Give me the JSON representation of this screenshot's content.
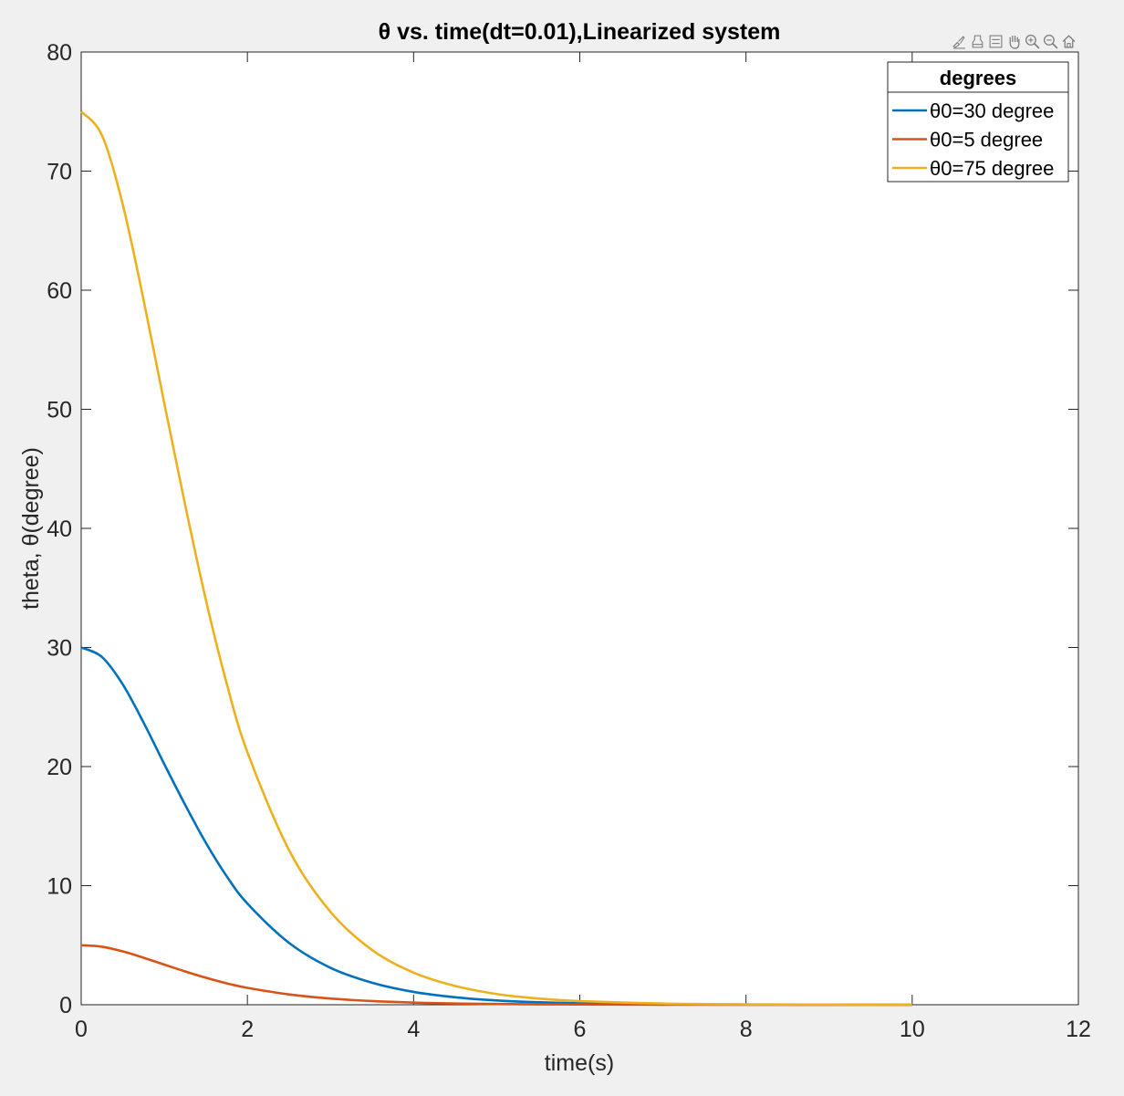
{
  "toolbar": {
    "buttons": [
      {
        "name": "brush-icon"
      },
      {
        "name": "export-icon"
      },
      {
        "name": "datatip-icon"
      },
      {
        "name": "pan-hand-icon"
      },
      {
        "name": "zoom-in-icon"
      },
      {
        "name": "zoom-out-icon"
      },
      {
        "name": "home-icon"
      }
    ]
  },
  "chart_data": {
    "type": "line",
    "title": "θ vs. time(dt=0.01),Linearized system",
    "xlabel": "time(s)",
    "ylabel": "theta, θ(degree)",
    "xlim": [
      0,
      12
    ],
    "ylim": [
      0,
      80
    ],
    "xticks": [
      0,
      2,
      4,
      6,
      8,
      10,
      12
    ],
    "yticks": [
      0,
      10,
      20,
      30,
      40,
      50,
      60,
      70,
      80
    ],
    "grid": false,
    "legend": {
      "title": "degrees",
      "location": "top-right"
    },
    "series": [
      {
        "name": "θ0=30 degree",
        "color": "#0072BD",
        "x": [
          0,
          0.25,
          0.5,
          0.75,
          1,
          1.25,
          1.5,
          1.75,
          2,
          2.5,
          3,
          3.5,
          4,
          4.5,
          5,
          5.5,
          6,
          7,
          8,
          9,
          10
        ],
        "y": [
          30,
          29.2,
          26.9,
          23.7,
          20.2,
          16.8,
          13.6,
          10.8,
          8.5,
          5.2,
          3.1,
          1.85,
          1.08,
          0.63,
          0.36,
          0.21,
          0.12,
          0.04,
          0.013,
          0.004,
          0.001
        ]
      },
      {
        "name": "θ0=5 degree",
        "color": "#D95319",
        "x": [
          0,
          0.25,
          0.5,
          0.75,
          1,
          1.25,
          1.5,
          1.75,
          2,
          2.5,
          3,
          3.5,
          4,
          4.5,
          5,
          5.5,
          6,
          7,
          8,
          9,
          10
        ],
        "y": [
          5,
          4.87,
          4.48,
          3.95,
          3.37,
          2.8,
          2.27,
          1.8,
          1.42,
          0.87,
          0.52,
          0.31,
          0.18,
          0.105,
          0.06,
          0.035,
          0.02,
          0.007,
          0.002,
          0.0007,
          0.0002
        ]
      },
      {
        "name": "θ0=75 degree",
        "color": "#EDB120",
        "x": [
          0,
          0.25,
          0.5,
          0.75,
          1,
          1.25,
          1.5,
          1.75,
          2,
          2.5,
          3,
          3.5,
          4,
          4.5,
          5,
          5.5,
          6,
          7,
          8,
          9,
          10
        ],
        "y": [
          75,
          73.0,
          67.2,
          59.2,
          50.5,
          42.0,
          34.0,
          27.0,
          21.2,
          13.0,
          7.8,
          4.6,
          2.7,
          1.58,
          0.9,
          0.52,
          0.3,
          0.1,
          0.033,
          0.011,
          0.0035
        ]
      }
    ]
  }
}
